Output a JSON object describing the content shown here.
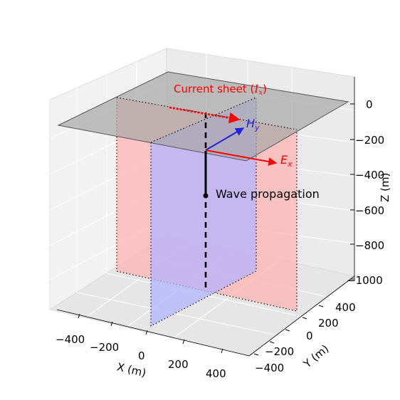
{
  "annotations": {
    "current_sheet_text": "Current sheet (",
    "current_sheet_symbol": "I",
    "current_sheet_sub": "x",
    "current_sheet_close": ")",
    "hy_symbol": "H",
    "hy_sub": "y",
    "ex_symbol": "E",
    "ex_sub": "x",
    "wave_propagation": "Wave propagation"
  },
  "axes": {
    "x_label": "X (m)",
    "y_label": "Y (m)",
    "z_label": "Z (m)",
    "x_ticks": [
      "−400",
      "−200",
      "0",
      "200",
      "400"
    ],
    "y_ticks": [
      "−400",
      "−200",
      "0",
      "200",
      "400"
    ],
    "z_ticks": [
      "0",
      "−200",
      "−400",
      "−600",
      "−800",
      "−1000"
    ]
  },
  "colors": {
    "current_sheet": "#ff0000",
    "magnetic_field": "#0000ff",
    "electric_field": "#ff0000",
    "wave": "#000000",
    "xz_plane": "#ffb3b3",
    "yz_plane": "#b3b3ff",
    "surface_plane": "#a6a6a6"
  }
}
